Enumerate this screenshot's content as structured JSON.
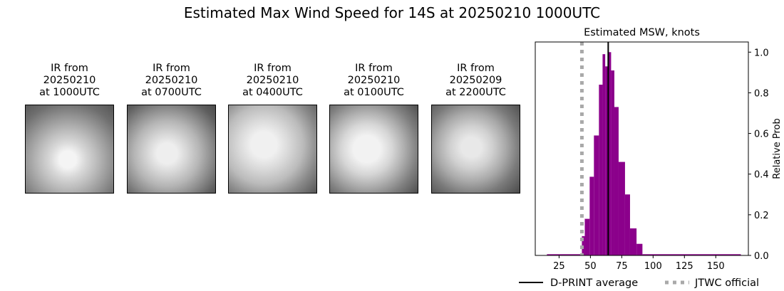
{
  "title": "Estimated Max Wind Speed for 14S at 20250210 1000UTC",
  "panels": [
    {
      "line1": "IR from",
      "line2": "20250210",
      "line3": "at 1000UTC"
    },
    {
      "line1": "IR from",
      "line2": "20250210",
      "line3": "at 0700UTC"
    },
    {
      "line1": "IR from",
      "line2": "20250210",
      "line3": "at 0400UTC"
    },
    {
      "line1": "IR from",
      "line2": "20250210",
      "line3": "at 0100UTC"
    },
    {
      "line1": "IR from",
      "line2": "20250209",
      "line3": "at 2200UTC"
    }
  ],
  "chart_data": {
    "type": "bar",
    "title": "Estimated MSW, knots",
    "xlabel": "",
    "ylabel": "Relative Prob",
    "xlim": [
      6,
      176
    ],
    "ylim": [
      0,
      1.05
    ],
    "xticks": [
      25,
      50,
      75,
      100,
      125,
      150
    ],
    "yticks": [
      0.0,
      0.2,
      0.4,
      0.6,
      0.8,
      1.0
    ],
    "yaxis_side": "right",
    "grid": false,
    "bar_color": "#8b008b",
    "bins": [
      {
        "from": 15.3,
        "to": 43.2,
        "value": 0.006
      },
      {
        "from": 43.2,
        "to": 45.5,
        "value": 0.095
      },
      {
        "from": 45.5,
        "to": 49.4,
        "value": 0.18
      },
      {
        "from": 49.4,
        "to": 52.8,
        "value": 0.387
      },
      {
        "from": 52.8,
        "to": 56.8,
        "value": 0.59
      },
      {
        "from": 56.8,
        "to": 59.7,
        "value": 0.84
      },
      {
        "from": 59.7,
        "to": 61.8,
        "value": 0.99
      },
      {
        "from": 61.8,
        "to": 64.4,
        "value": 0.93
      },
      {
        "from": 64.4,
        "to": 66.5,
        "value": 1.0
      },
      {
        "from": 66.5,
        "to": 69.1,
        "value": 0.91
      },
      {
        "from": 69.1,
        "to": 72.5,
        "value": 0.73
      },
      {
        "from": 72.5,
        "to": 77.6,
        "value": 0.46
      },
      {
        "from": 77.6,
        "to": 81.6,
        "value": 0.3
      },
      {
        "from": 81.6,
        "to": 86.8,
        "value": 0.133
      },
      {
        "from": 86.8,
        "to": 91.5,
        "value": 0.057
      },
      {
        "from": 91.5,
        "to": 170,
        "value": 0.006
      }
    ],
    "vlines": [
      {
        "name": "D-PRINT average",
        "x": 64.2,
        "color": "#000000",
        "style": "solid"
      },
      {
        "name": "JTWC official",
        "x": 43.2,
        "color": "#a9a9a9",
        "style": "dotted"
      }
    ],
    "legend_placement": "bottom"
  }
}
